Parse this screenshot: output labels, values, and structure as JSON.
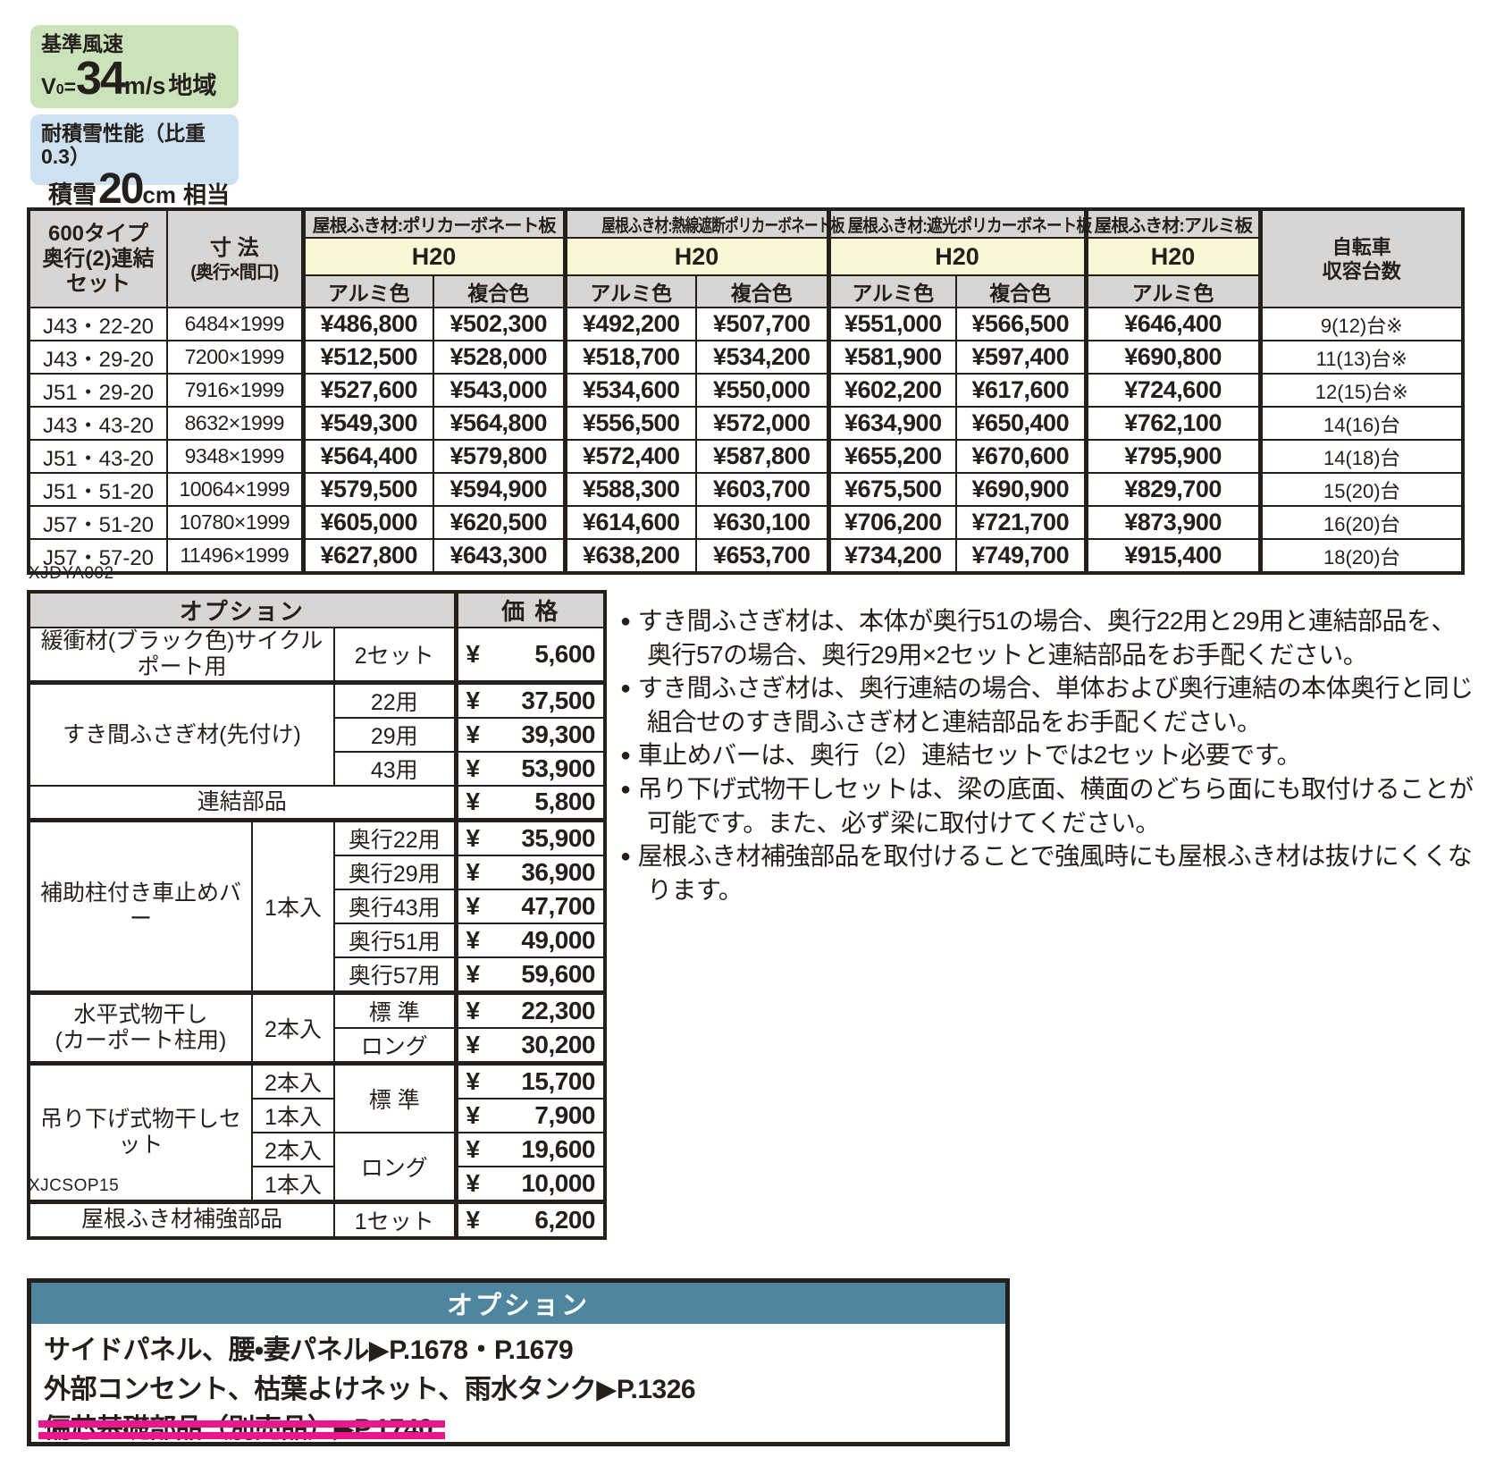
{
  "badges": {
    "wind": {
      "label": "基準風速",
      "symbol": "V",
      "symbol_sub": "0",
      "equals": "=",
      "value": "34",
      "unit": "m/s",
      "suffix": "地域"
    },
    "snow": {
      "label": "耐積雪性能（比重0.3）",
      "prefix": "積雪",
      "value": "20",
      "unit": "cm",
      "suffix": "相当"
    }
  },
  "main_table": {
    "code": "XJDYA002",
    "header": {
      "product": [
        "600タイプ",
        "奥行(2)連結",
        "セット"
      ],
      "size_title": "寸 法",
      "size_sub": "(奥行×間口)",
      "groups": [
        {
          "title": "屋根ふき材:ポリカーボネート板",
          "height_class": "H20",
          "colors": [
            "アルミ色",
            "複合色"
          ]
        },
        {
          "title": "屋根ふき材:熱線遮断ポリカーボネート板",
          "height_class": "H20",
          "colors": [
            "アルミ色",
            "複合色"
          ]
        },
        {
          "title": "屋根ふき材:遮光ポリカーボネート板",
          "height_class": "H20",
          "colors": [
            "アルミ色",
            "複合色"
          ]
        },
        {
          "title": "屋根ふき材:アルミ板",
          "height_class": "H20",
          "colors": [
            "アルミ色"
          ]
        }
      ],
      "capacity": [
        "自転車",
        "収容台数"
      ]
    },
    "rows": [
      {
        "model": "J43・22-20",
        "size": "6484×1999",
        "prices": [
          "¥486,800",
          "¥502,300",
          "¥492,200",
          "¥507,700",
          "¥551,000",
          "¥566,500",
          "¥646,400"
        ],
        "capacity": "9(12)台※"
      },
      {
        "model": "J43・29-20",
        "size": "7200×1999",
        "prices": [
          "¥512,500",
          "¥528,000",
          "¥518,700",
          "¥534,200",
          "¥581,900",
          "¥597,400",
          "¥690,800"
        ],
        "capacity": "11(13)台※"
      },
      {
        "model": "J51・29-20",
        "size": "7916×1999",
        "prices": [
          "¥527,600",
          "¥543,000",
          "¥534,600",
          "¥550,000",
          "¥602,200",
          "¥617,600",
          "¥724,600"
        ],
        "capacity": "12(15)台※"
      },
      {
        "model": "J43・43-20",
        "size": "8632×1999",
        "prices": [
          "¥549,300",
          "¥564,800",
          "¥556,500",
          "¥572,000",
          "¥634,900",
          "¥650,400",
          "¥762,100"
        ],
        "capacity": "14(16)台"
      },
      {
        "model": "J51・43-20",
        "size": "9348×1999",
        "prices": [
          "¥564,400",
          "¥579,800",
          "¥572,400",
          "¥587,800",
          "¥655,200",
          "¥670,600",
          "¥795,900"
        ],
        "capacity": "14(18)台"
      },
      {
        "model": "J51・51-20",
        "size": "10064×1999",
        "prices": [
          "¥579,500",
          "¥594,900",
          "¥588,300",
          "¥603,700",
          "¥675,500",
          "¥690,900",
          "¥829,700"
        ],
        "capacity": "15(20)台"
      },
      {
        "model": "J57・51-20",
        "size": "10780×1999",
        "prices": [
          "¥605,000",
          "¥620,500",
          "¥614,600",
          "¥630,100",
          "¥706,200",
          "¥721,700",
          "¥873,900"
        ],
        "capacity": "16(20)台"
      },
      {
        "model": "J57・57-20",
        "size": "11496×1999",
        "prices": [
          "¥627,800",
          "¥643,300",
          "¥638,200",
          "¥653,700",
          "¥734,200",
          "¥749,700",
          "¥915,400"
        ],
        "capacity": "18(20)台"
      }
    ]
  },
  "options_table": {
    "code": "XJCSOP15",
    "currency": "¥",
    "header": {
      "left": "オプション",
      "right": "価 格"
    },
    "rows": [
      [
        {
          "t": "緩衝材(ブラック色)サイクルポート用",
          "cs": 2,
          "cls": "name"
        },
        {
          "t": "2セット",
          "cls": "variant"
        },
        {
          "t": "5,600",
          "cls": "price"
        }
      ],
      [
        {
          "t": "すき間ふさぎ材(先付け)",
          "cs": 2,
          "rs": 3,
          "cls": "name"
        },
        {
          "t": "22用",
          "cls": "variant"
        },
        {
          "t": "37,500",
          "cls": "price"
        }
      ],
      [
        {
          "t": "29用",
          "cls": "variant"
        },
        {
          "t": "39,300",
          "cls": "price"
        }
      ],
      [
        {
          "t": "43用",
          "cls": "variant"
        },
        {
          "t": "53,900",
          "cls": "price"
        }
      ],
      [
        {
          "t": "連結部品",
          "cs": 3,
          "cls": "name"
        },
        {
          "t": "5,800",
          "cls": "price"
        }
      ],
      [
        {
          "t": "補助柱付き車止めバー",
          "rs": 5,
          "cls": "name"
        },
        {
          "t": "1本入",
          "rs": 5,
          "cls": "variant"
        },
        {
          "t": "奥行22用",
          "cls": "variant"
        },
        {
          "t": "35,900",
          "cls": "price"
        }
      ],
      [
        {
          "t": "奥行29用",
          "cls": "variant"
        },
        {
          "t": "36,900",
          "cls": "price"
        }
      ],
      [
        {
          "t": "奥行43用",
          "cls": "variant"
        },
        {
          "t": "47,700",
          "cls": "price"
        }
      ],
      [
        {
          "t": "奥行51用",
          "cls": "variant"
        },
        {
          "t": "49,000",
          "cls": "price"
        }
      ],
      [
        {
          "t": "奥行57用",
          "cls": "variant"
        },
        {
          "t": "59,600",
          "cls": "price"
        }
      ],
      [
        {
          "t": "水平式物干し\n(カーポート柱用)",
          "rs": 2,
          "cls": "name"
        },
        {
          "t": "2本入",
          "rs": 2,
          "cls": "variant"
        },
        {
          "t": "標 準",
          "cls": "variant"
        },
        {
          "t": "22,300",
          "cls": "price"
        }
      ],
      [
        {
          "t": "ロング",
          "cls": "variant"
        },
        {
          "t": "30,200",
          "cls": "price"
        }
      ],
      [
        {
          "t": "吊り下げ式物干しセット",
          "rs": 4,
          "cls": "name"
        },
        {
          "t": "2本入",
          "cls": "variant"
        },
        {
          "t": "標 準",
          "rs": 2,
          "cls": "variant"
        },
        {
          "t": "15,700",
          "cls": "price"
        }
      ],
      [
        {
          "t": "1本入",
          "cls": "variant"
        },
        {
          "t": "7,900",
          "cls": "price"
        }
      ],
      [
        {
          "t": "2本入",
          "cls": "variant"
        },
        {
          "t": "ロング",
          "rs": 2,
          "cls": "variant"
        },
        {
          "t": "19,600",
          "cls": "price"
        }
      ],
      [
        {
          "t": "1本入",
          "cls": "variant"
        },
        {
          "t": "10,000",
          "cls": "price"
        }
      ],
      [
        {
          "t": "屋根ふき材補強部品",
          "cs": 2,
          "cls": "name"
        },
        {
          "t": "1セット",
          "cls": "variant"
        },
        {
          "t": "6,200",
          "cls": "price"
        }
      ]
    ],
    "heavy_top_rows": [
      1,
      5,
      10,
      12,
      16
    ]
  },
  "notes": [
    "すき間ふさぎ材は、本体が奥行51の場合、奥行22用と29用と連結部品を、奥行57の場合、奥行29用×2セットと連結部品をお手配ください。",
    "すき間ふさぎ材は、奥行連結の場合、単体および奥行連結の本体奥行と同じ組合せのすき間ふさぎ材と連結部品をお手配ください。",
    "車止めバーは、奥行（2）連結セットでは2セット必要です。",
    "吊り下げ式物干しセットは、梁の底面、横面のどちら面にも取付けることが可能です。また、必ず梁に取付けてください。",
    "屋根ふき材補強部品を取付けることで強風時にも屋根ふき材は抜けにくくなります。"
  ],
  "bottom_box": {
    "title": "オプション",
    "lines": [
      {
        "text": "サイドパネル、腰・妻パネル▶P.1678・P.1679",
        "struck": false
      },
      {
        "text": "外部コンセント、枯葉よけネット、雨水タンク▶P.1326",
        "struck": false
      },
      {
        "text": "偏芯基礎部品（別売品）▶P.1740",
        "struck": true
      }
    ]
  },
  "colors": {
    "badge_green": "#cbe3ba",
    "badge_blue": "#cde1f1",
    "header_gray": "#d7d6d4",
    "band_yellow": "#fbf6d5",
    "accent_teal": "#4e86a0",
    "strike_magenta": "#ec168c",
    "border_black": "#241f1b"
  }
}
